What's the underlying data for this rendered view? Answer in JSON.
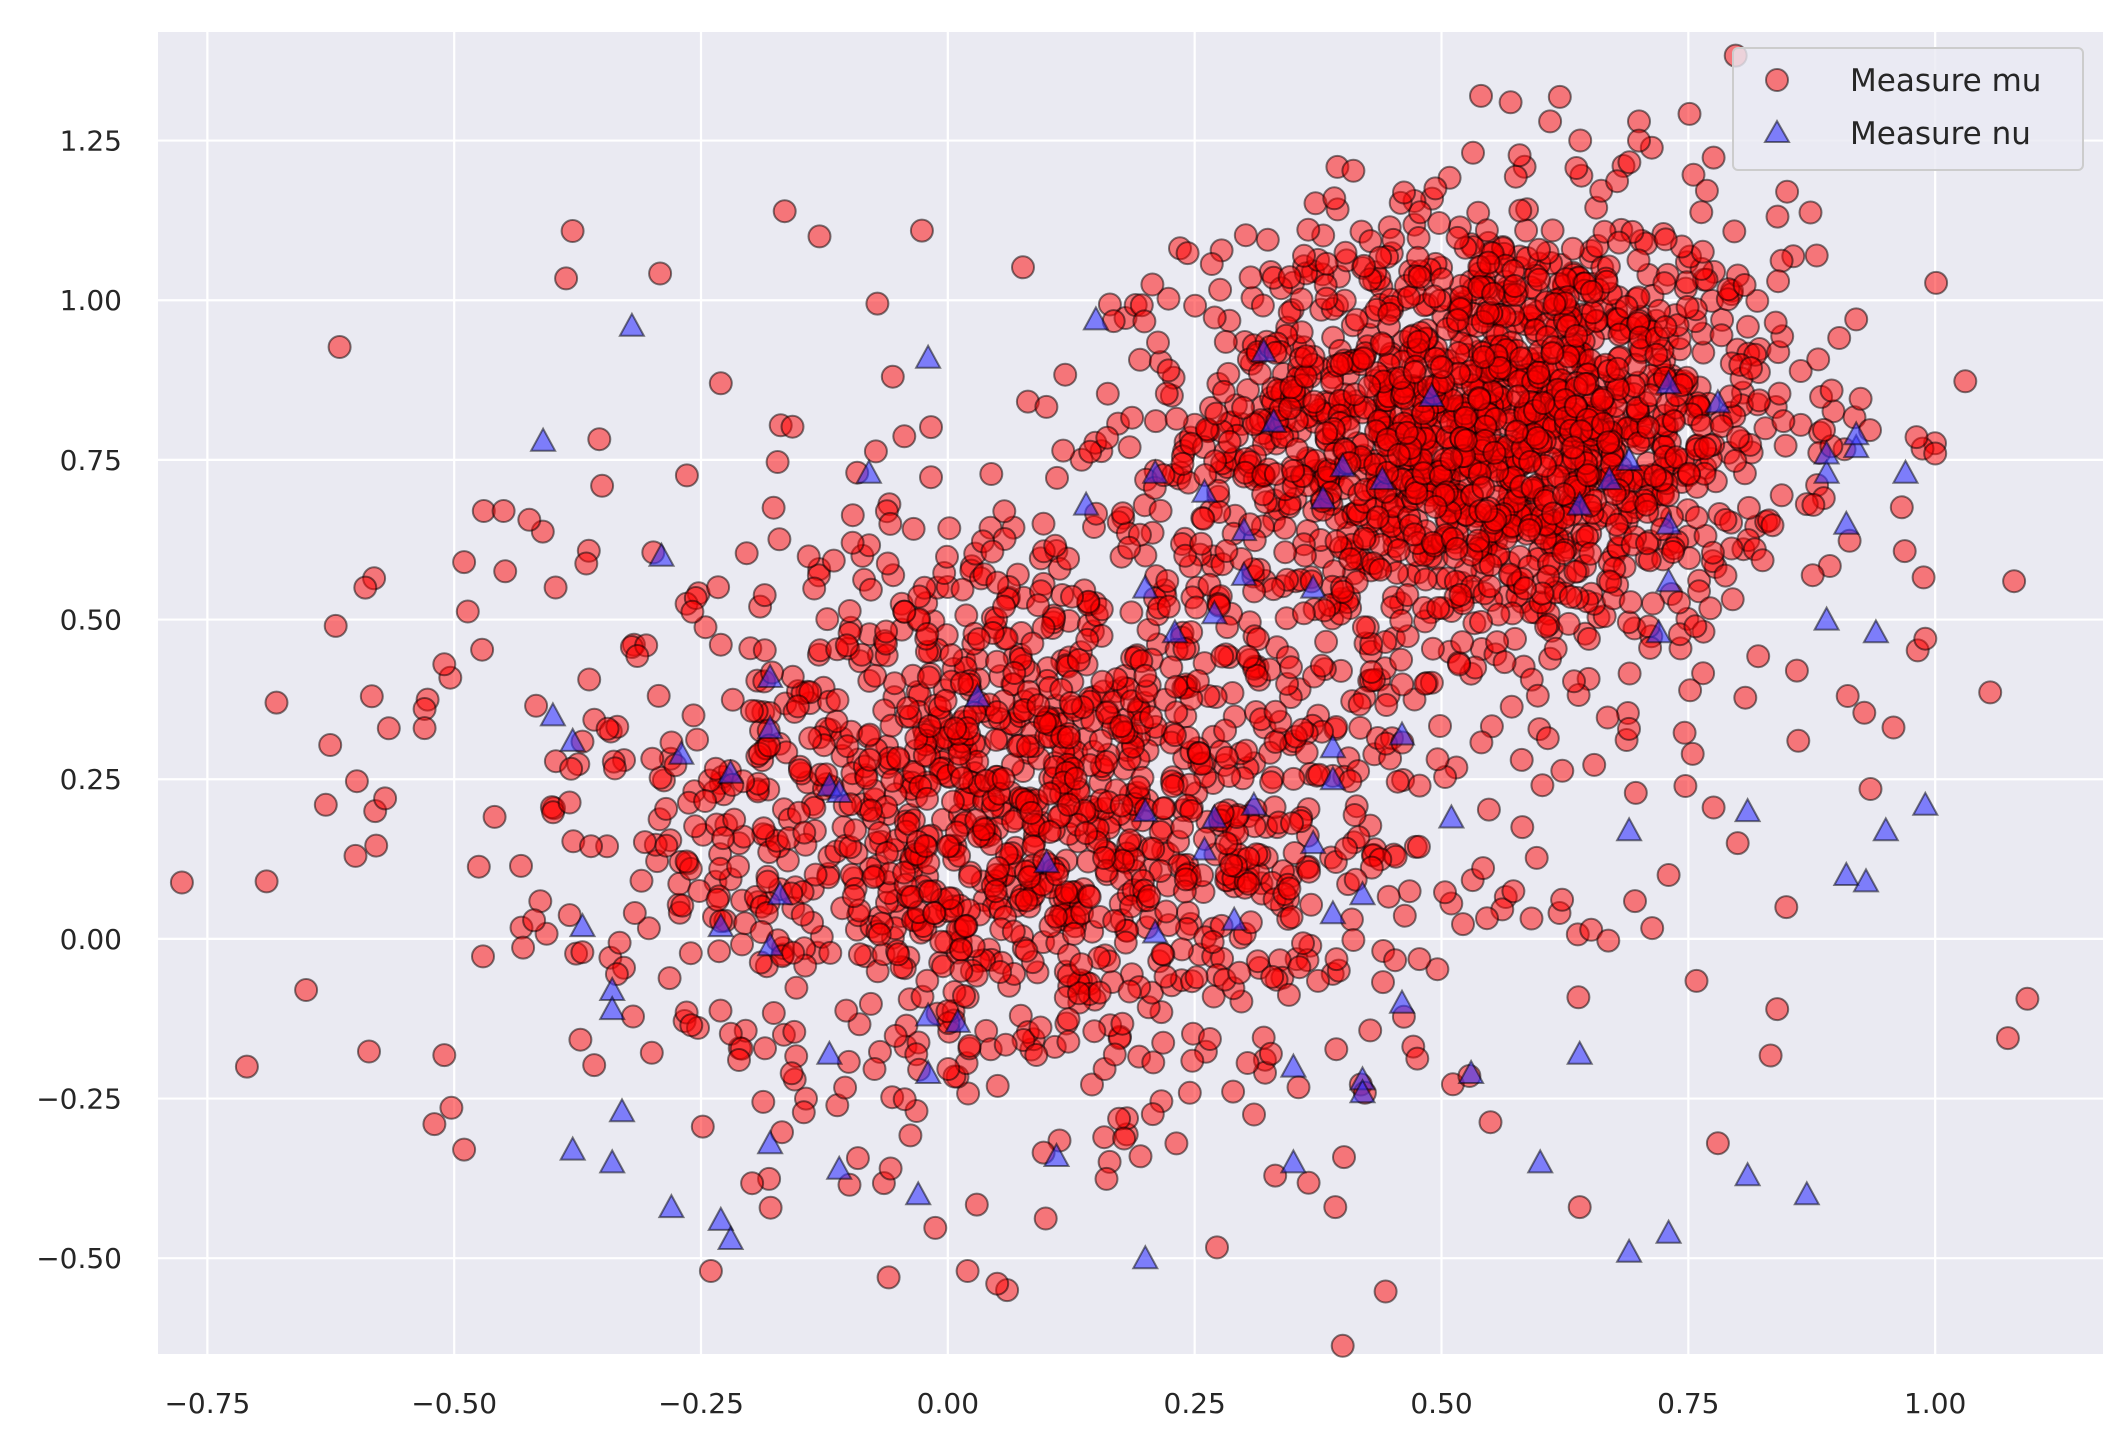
{
  "chart_data": {
    "type": "scatter",
    "title": "",
    "xlabel": "",
    "ylabel": "",
    "xlim": [
      -0.8,
      1.17
    ],
    "ylim": [
      -0.65,
      1.42
    ],
    "xticks": [
      -0.75,
      -0.5,
      -0.25,
      0.0,
      0.25,
      0.5,
      0.75,
      1.0
    ],
    "xtick_labels": [
      "−0.75",
      "−0.50",
      "−0.25",
      "0.00",
      "0.25",
      "0.50",
      "0.75",
      "1.00"
    ],
    "yticks": [
      -0.5,
      -0.25,
      0.0,
      0.25,
      0.5,
      0.75,
      1.0,
      1.25
    ],
    "ytick_labels": [
      "−0.50",
      "−0.25",
      "0.00",
      "0.25",
      "0.50",
      "0.75",
      "1.00",
      "1.25"
    ],
    "grid": true,
    "legend_position": "top-right",
    "series": [
      {
        "name": "Measure mu",
        "marker": "circle",
        "color": "#ff0000",
        "edgecolor": "#000000",
        "alpha": 0.5,
        "clusters": [
          {
            "center": [
              0.55,
              0.8
            ],
            "std": [
              0.15,
              0.17
            ],
            "count": 1700,
            "mode": "gaussian"
          },
          {
            "center": [
              0.08,
              0.2
            ],
            "std": [
              0.22,
              0.22
            ],
            "count": 1400,
            "mode": "gaussian"
          },
          {
            "center": [
              0.22,
              0.35
            ],
            "std": [
              0.45,
              0.38
            ],
            "count": 180,
            "mode": "gaussian"
          }
        ],
        "points": [
          [
            -0.71,
            -0.2
          ],
          [
            -0.69,
            0.09
          ],
          [
            -0.68,
            0.37
          ],
          [
            -0.65,
            -0.08
          ],
          [
            -0.63,
            0.21
          ],
          [
            -0.62,
            0.49
          ],
          [
            -0.59,
            0.55
          ],
          [
            -0.6,
            0.13
          ],
          [
            -0.58,
            0.2
          ],
          [
            -0.57,
            0.22
          ],
          [
            -0.53,
            0.36
          ],
          [
            -0.53,
            0.33
          ],
          [
            -0.52,
            -0.29
          ],
          [
            -0.51,
            0.43
          ],
          [
            -0.49,
            -0.33
          ],
          [
            -0.49,
            0.59
          ],
          [
            -0.47,
            0.67
          ],
          [
            -0.45,
            0.67
          ],
          [
            -0.13,
            1.1
          ],
          [
            -0.23,
            0.87
          ],
          [
            0.54,
            1.32
          ],
          [
            0.57,
            1.31
          ],
          [
            0.61,
            1.28
          ],
          [
            0.7,
            1.28
          ],
          [
            0.7,
            1.25
          ],
          [
            1.08,
            0.56
          ],
          [
            1.0,
            0.76
          ],
          [
            0.99,
            0.47
          ],
          [
            0.86,
            0.42
          ],
          [
            0.84,
            -0.11
          ],
          [
            0.06,
            -0.55
          ],
          [
            0.05,
            -0.54
          ],
          [
            -0.24,
            -0.52
          ],
          [
            -0.06,
            -0.53
          ],
          [
            0.02,
            -0.52
          ],
          [
            0.73,
            0.1
          ],
          [
            0.78,
            -0.32
          ],
          [
            0.64,
            -0.42
          ],
          [
            0.8,
            0.15
          ],
          [
            0.92,
            0.97
          ],
          [
            0.85,
            1.17
          ],
          [
            0.88,
            1.07
          ]
        ]
      },
      {
        "name": "Measure nu",
        "marker": "triangle",
        "color": "#3333ff",
        "edgecolor": "#000000",
        "alpha": 0.6,
        "points": [
          [
            -0.32,
            0.96
          ],
          [
            -0.41,
            0.78
          ],
          [
            -0.02,
            0.91
          ],
          [
            -0.08,
            0.73
          ],
          [
            0.15,
            0.97
          ],
          [
            0.14,
            0.68
          ],
          [
            0.21,
            0.73
          ],
          [
            0.26,
            0.7
          ],
          [
            0.33,
            0.81
          ],
          [
            0.32,
            0.92
          ],
          [
            0.38,
            0.69
          ],
          [
            0.4,
            0.74
          ],
          [
            0.44,
            0.72
          ],
          [
            0.49,
            0.85
          ],
          [
            0.64,
            0.68
          ],
          [
            0.67,
            0.72
          ],
          [
            0.69,
            0.75
          ],
          [
            0.73,
            0.87
          ],
          [
            0.78,
            0.84
          ],
          [
            0.73,
            0.65
          ],
          [
            0.72,
            0.48
          ],
          [
            0.73,
            0.56
          ],
          [
            0.89,
            0.73
          ],
          [
            0.92,
            0.77
          ],
          [
            0.92,
            0.79
          ],
          [
            0.97,
            0.73
          ],
          [
            0.89,
            0.76
          ],
          [
            0.91,
            0.65
          ],
          [
            0.89,
            0.5
          ],
          [
            0.94,
            0.48
          ],
          [
            0.81,
            0.2
          ],
          [
            0.95,
            0.17
          ],
          [
            0.99,
            0.21
          ],
          [
            0.91,
            0.1
          ],
          [
            0.93,
            0.09
          ],
          [
            -0.29,
            0.6
          ],
          [
            -0.4,
            0.35
          ],
          [
            -0.38,
            0.31
          ],
          [
            -0.27,
            0.29
          ],
          [
            -0.22,
            0.26
          ],
          [
            -0.18,
            0.33
          ],
          [
            -0.18,
            0.41
          ],
          [
            -0.12,
            0.24
          ],
          [
            -0.11,
            0.23
          ],
          [
            -0.17,
            0.07
          ],
          [
            -0.18,
            -0.01
          ],
          [
            -0.23,
            0.02
          ],
          [
            -0.37,
            0.02
          ],
          [
            -0.34,
            -0.08
          ],
          [
            -0.34,
            -0.11
          ],
          [
            -0.38,
            -0.33
          ],
          [
            -0.34,
            -0.35
          ],
          [
            -0.33,
            -0.27
          ],
          [
            -0.28,
            -0.42
          ],
          [
            -0.23,
            -0.44
          ],
          [
            -0.22,
            -0.47
          ],
          [
            -0.18,
            -0.32
          ],
          [
            -0.11,
            -0.36
          ],
          [
            -0.12,
            -0.18
          ],
          [
            -0.02,
            -0.12
          ],
          [
            0.01,
            -0.13
          ],
          [
            -0.02,
            -0.21
          ],
          [
            -0.03,
            -0.4
          ],
          [
            0.03,
            0.38
          ],
          [
            0.1,
            0.12
          ],
          [
            0.11,
            -0.34
          ],
          [
            0.2,
            0.2
          ],
          [
            0.2,
            0.55
          ],
          [
            0.23,
            0.48
          ],
          [
            0.27,
            0.51
          ],
          [
            0.3,
            0.57
          ],
          [
            0.3,
            0.64
          ],
          [
            0.21,
            0.01
          ],
          [
            0.27,
            0.19
          ],
          [
            0.26,
            0.14
          ],
          [
            0.29,
            0.03
          ],
          [
            0.31,
            0.21
          ],
          [
            0.37,
            0.55
          ],
          [
            0.37,
            0.15
          ],
          [
            0.39,
            0.3
          ],
          [
            0.39,
            0.25
          ],
          [
            0.39,
            0.04
          ],
          [
            0.42,
            0.07
          ],
          [
            0.46,
            0.32
          ],
          [
            0.51,
            0.19
          ],
          [
            0.46,
            -0.1
          ],
          [
            0.42,
            -0.22
          ],
          [
            0.42,
            -0.24
          ],
          [
            0.35,
            -0.2
          ],
          [
            0.35,
            -0.35
          ],
          [
            0.53,
            -0.21
          ],
          [
            0.6,
            -0.35
          ],
          [
            0.64,
            -0.18
          ],
          [
            0.69,
            0.17
          ],
          [
            0.69,
            -0.49
          ],
          [
            0.73,
            -0.46
          ],
          [
            0.81,
            -0.37
          ],
          [
            0.87,
            -0.4
          ],
          [
            0.2,
            -0.5
          ]
        ]
      }
    ]
  }
}
